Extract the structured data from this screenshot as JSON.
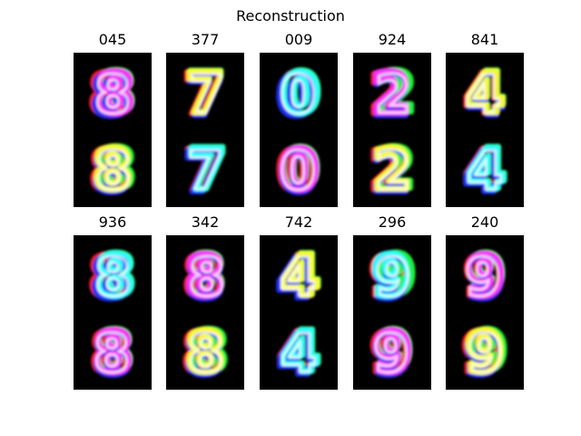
{
  "figure": {
    "title": "Reconstruction"
  },
  "panels": [
    {
      "label": "045",
      "digit": "8"
    },
    {
      "label": "377",
      "digit": "7"
    },
    {
      "label": "009",
      "digit": "0"
    },
    {
      "label": "924",
      "digit": "2"
    },
    {
      "label": "841",
      "digit": "4"
    },
    {
      "label": "936",
      "digit": "8"
    },
    {
      "label": "342",
      "digit": "8"
    },
    {
      "label": "742",
      "digit": "4"
    },
    {
      "label": "296",
      "digit": "9"
    },
    {
      "label": "240",
      "digit": "9"
    }
  ],
  "colors": {
    "background": "#000000",
    "channels": [
      "#ff2020",
      "#20ff40",
      "#2030ff"
    ],
    "highlight": "#ffffff",
    "mix": [
      "#ff30ff",
      "#ffff30",
      "#30ffff"
    ]
  }
}
